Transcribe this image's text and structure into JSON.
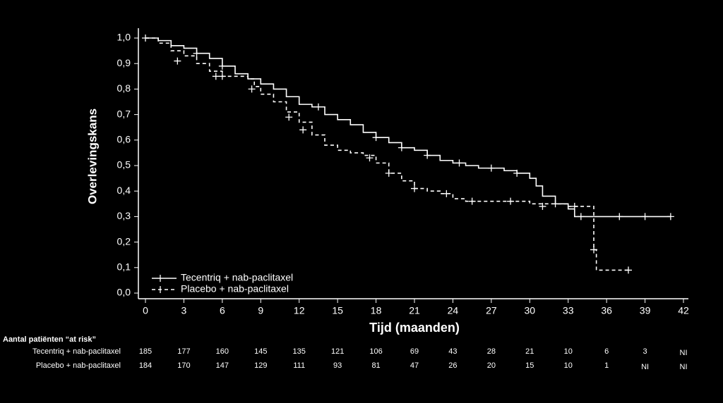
{
  "chart_data": {
    "type": "km",
    "y_title": "Overlevingskans",
    "x_title": "Tijd (maanden)",
    "xlim": [
      0,
      42
    ],
    "xticks": [
      0,
      3,
      6,
      9,
      12,
      15,
      18,
      21,
      24,
      27,
      30,
      33,
      36,
      39,
      42
    ],
    "ylim": [
      0,
      1
    ],
    "yticks": [
      {
        "value": 0,
        "label": "0,0"
      },
      {
        "value": 0.1,
        "label": "0,1"
      },
      {
        "value": 0.2,
        "label": "0,2"
      },
      {
        "value": 0.3,
        "label": "0,3"
      },
      {
        "value": 0.4,
        "label": "0,4"
      },
      {
        "value": 0.5,
        "label": "0,5"
      },
      {
        "value": 0.6,
        "label": "0,6"
      },
      {
        "value": 0.7,
        "label": "0,7"
      },
      {
        "value": 0.8,
        "label": "0,8"
      },
      {
        "value": 0.9,
        "label": "0,9"
      },
      {
        "value": 1,
        "label": "1,0"
      }
    ],
    "legend": "lower-left",
    "series": [
      {
        "name": "Tecentriq + nab-paclitaxel",
        "color": "#ffffff",
        "line_style": "solid",
        "x": [
          0,
          1,
          2,
          3,
          4,
          5,
          6,
          7,
          8,
          9,
          10,
          11,
          12,
          13,
          14,
          15,
          16,
          17,
          18,
          19,
          20,
          21,
          22,
          23,
          24,
          25,
          26,
          27,
          28,
          29,
          30,
          30.5,
          31,
          32,
          33,
          33.5,
          41
        ],
        "values": [
          1,
          0.99,
          0.97,
          0.96,
          0.94,
          0.92,
          0.89,
          0.86,
          0.84,
          0.82,
          0.8,
          0.77,
          0.74,
          0.73,
          0.7,
          0.68,
          0.66,
          0.63,
          0.61,
          0.59,
          0.57,
          0.56,
          0.54,
          0.52,
          0.51,
          0.5,
          0.49,
          0.49,
          0.48,
          0.47,
          0.45,
          0.42,
          0.38,
          0.35,
          0.33,
          0.3,
          0.3
        ],
        "censored_x": [
          0,
          4,
          6,
          13.5,
          18,
          20,
          22,
          24.5,
          27,
          29,
          32,
          34,
          37,
          39,
          41
        ],
        "censored_y": [
          1,
          0.94,
          0.89,
          0.73,
          0.61,
          0.57,
          0.54,
          0.51,
          0.49,
          0.47,
          0.35,
          0.3,
          0.3,
          0.3,
          0.3
        ]
      },
      {
        "name": "Placebo + nab-paclitaxel",
        "color": "#ffffff",
        "line_style": "dashed",
        "x": [
          0,
          1,
          2,
          3,
          4,
          5,
          6,
          7,
          8,
          8.5,
          9,
          10,
          11,
          12,
          13,
          14,
          15,
          16,
          17,
          18,
          19,
          20,
          21,
          22,
          23,
          24,
          25,
          30,
          33,
          34,
          35,
          35.2,
          37.7
        ],
        "values": [
          1,
          0.98,
          0.95,
          0.93,
          0.9,
          0.87,
          0.85,
          0.85,
          0.84,
          0.81,
          0.78,
          0.75,
          0.71,
          0.67,
          0.62,
          0.58,
          0.56,
          0.55,
          0.54,
          0.51,
          0.47,
          0.44,
          0.41,
          0.4,
          0.39,
          0.37,
          0.36,
          0.35,
          0.34,
          0.34,
          0.17,
          0.09,
          0.09
        ],
        "censored_x": [
          2.5,
          5.5,
          6,
          8.3,
          11.2,
          12.3,
          17.5,
          19,
          21,
          23.5,
          25.5,
          28.5,
          31,
          33.5,
          35,
          37.7
        ],
        "censored_y": [
          0.91,
          0.85,
          0.85,
          0.8,
          0.69,
          0.64,
          0.53,
          0.47,
          0.41,
          0.39,
          0.36,
          0.36,
          0.34,
          0.34,
          0.17,
          0.09
        ]
      }
    ],
    "at_risk": {
      "title": "Aantal patiënten “at risk”",
      "rows": [
        {
          "name": "Tecentriq + nab-paclitaxel",
          "values": [
            185,
            177,
            160,
            145,
            135,
            121,
            106,
            69,
            43,
            28,
            21,
            10,
            6,
            3,
            "NI"
          ]
        },
        {
          "name": "Placebo + nab-paclitaxel",
          "values": [
            184,
            170,
            147,
            129,
            111,
            93,
            81,
            47,
            26,
            20,
            15,
            10,
            1,
            "NI",
            "NI"
          ]
        }
      ]
    }
  }
}
